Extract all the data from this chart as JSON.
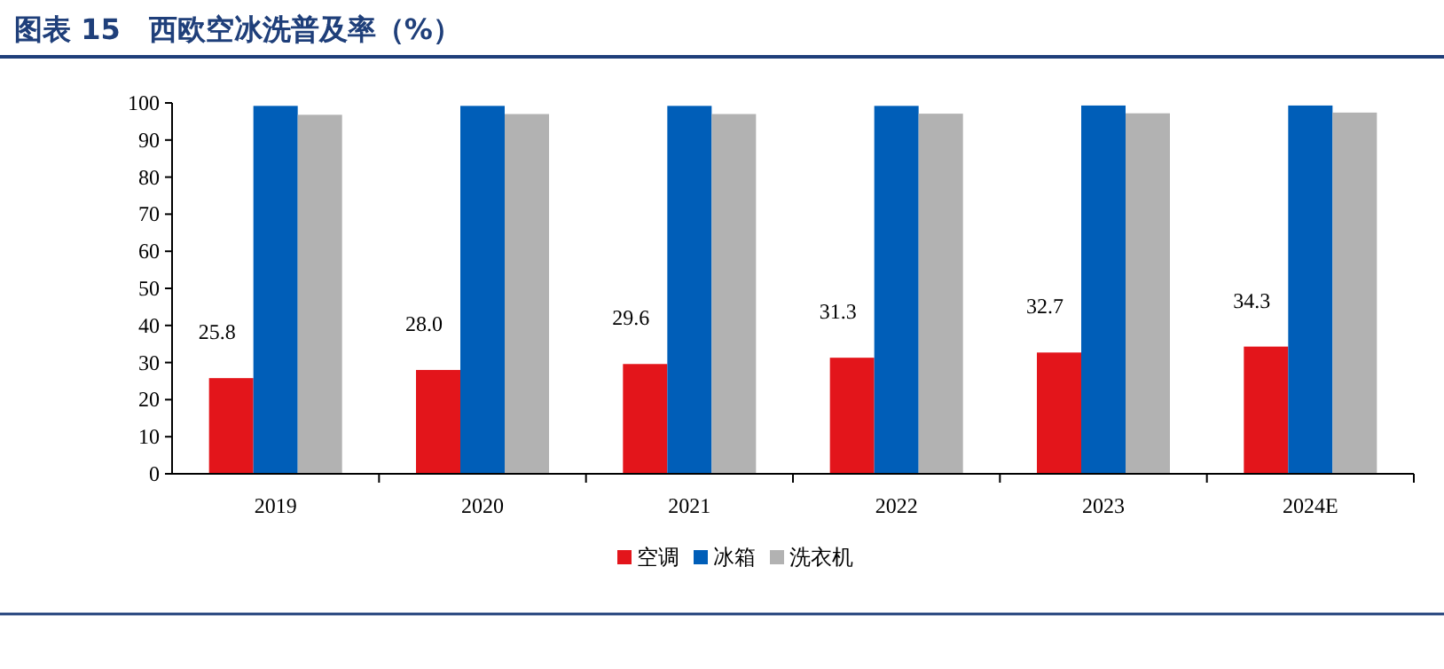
{
  "chart_data": {
    "type": "bar",
    "title": "图表 15　西欧空冰洗普及率（%）",
    "categories": [
      "2019",
      "2020",
      "2021",
      "2022",
      "2023",
      "2024E"
    ],
    "series": [
      {
        "name": "空调",
        "color": "#e3151b",
        "values": [
          25.8,
          28.0,
          29.6,
          31.3,
          32.7,
          34.3
        ],
        "value_labels": [
          "25.8",
          "28.0",
          "29.6",
          "31.3",
          "32.7",
          "34.3"
        ]
      },
      {
        "name": "冰箱",
        "color": "#005eb8",
        "values": [
          99.2,
          99.2,
          99.2,
          99.2,
          99.3,
          99.3
        ]
      },
      {
        "name": "洗衣机",
        "color": "#b2b2b2",
        "values": [
          96.8,
          97.0,
          97.0,
          97.1,
          97.2,
          97.4
        ]
      }
    ],
    "ylim": [
      0,
      100
    ],
    "yticks": [
      0,
      10,
      20,
      30,
      40,
      50,
      60,
      70,
      80,
      90,
      100
    ],
    "legend": "bottom",
    "grid": false
  }
}
